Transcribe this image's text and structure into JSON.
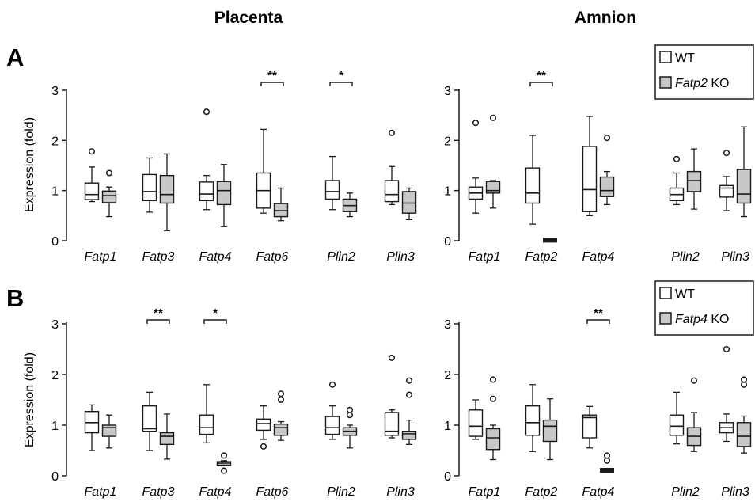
{
  "titles": {
    "left": "Placenta",
    "right": "Amnion"
  },
  "panels": {
    "a": "A",
    "b": "B"
  },
  "ylabel": "Expression (fold)",
  "colors": {
    "wt": "#ffffff",
    "ko": "#c8c8c8",
    "stroke": "#1a1a1a"
  },
  "legends": {
    "a": {
      "wt": "WT",
      "ko_gene": "Fatp2",
      "ko_suffix": " KO"
    },
    "b": {
      "wt": "WT",
      "ko_gene": "Fatp4",
      "ko_suffix": " KO"
    }
  },
  "chart_data": [
    {
      "id": "A-placenta",
      "type": "boxplot",
      "ylim": [
        0,
        3
      ],
      "yticks": [
        0,
        1,
        2,
        3
      ],
      "groups": [
        {
          "label": "Fatp1",
          "wt": {
            "min": 0.78,
            "q1": 0.82,
            "median": 0.92,
            "q3": 1.15,
            "max": 1.47,
            "outliers": [
              1.78
            ]
          },
          "ko": {
            "min": 0.48,
            "q1": 0.76,
            "median": 0.9,
            "q3": 0.99,
            "max": 1.07,
            "outliers": [
              1.35
            ]
          }
        },
        {
          "label": "Fatp3",
          "wt": {
            "min": 0.57,
            "q1": 0.8,
            "median": 0.98,
            "q3": 1.32,
            "max": 1.65,
            "outliers": []
          },
          "ko": {
            "min": 0.2,
            "q1": 0.75,
            "median": 0.92,
            "q3": 1.3,
            "max": 1.73,
            "outliers": []
          }
        },
        {
          "label": "Fatp4",
          "wt": {
            "min": 0.62,
            "q1": 0.8,
            "median": 0.93,
            "q3": 1.17,
            "max": 1.3,
            "outliers": [
              2.57
            ]
          },
          "ko": {
            "min": 0.28,
            "q1": 0.72,
            "median": 1.0,
            "q3": 1.18,
            "max": 1.52,
            "outliers": []
          }
        },
        {
          "label": "Fatp6",
          "wt": {
            "min": 0.55,
            "q1": 0.65,
            "median": 1.0,
            "q3": 1.35,
            "max": 2.22,
            "outliers": []
          },
          "ko": {
            "min": 0.4,
            "q1": 0.48,
            "median": 0.6,
            "q3": 0.74,
            "max": 1.05,
            "outliers": []
          },
          "sig": "**"
        },
        {
          "label": "Plin2",
          "wt": {
            "min": 0.62,
            "q1": 0.83,
            "median": 0.98,
            "q3": 1.2,
            "max": 1.68,
            "outliers": []
          },
          "ko": {
            "min": 0.48,
            "q1": 0.58,
            "median": 0.7,
            "q3": 0.83,
            "max": 0.95,
            "outliers": []
          },
          "sig": "*"
        },
        {
          "label": "Plin3",
          "wt": {
            "min": 0.72,
            "q1": 0.78,
            "median": 0.92,
            "q3": 1.2,
            "max": 1.48,
            "outliers": [
              2.15
            ]
          },
          "ko": {
            "min": 0.42,
            "q1": 0.55,
            "median": 0.75,
            "q3": 0.98,
            "max": 1.05,
            "outliers": []
          }
        }
      ]
    },
    {
      "id": "A-amnion",
      "type": "boxplot",
      "ylim": [
        0,
        3
      ],
      "yticks": [
        0,
        1,
        2,
        3
      ],
      "groups": [
        {
          "label": "Fatp1",
          "wt": {
            "min": 0.55,
            "q1": 0.83,
            "median": 0.95,
            "q3": 1.07,
            "max": 1.25,
            "outliers": [
              2.35
            ]
          },
          "ko": {
            "min": 0.65,
            "q1": 0.95,
            "median": 1.0,
            "q3": 1.18,
            "max": 1.2,
            "outliers": [
              2.45
            ]
          }
        },
        {
          "label": "Fatp2",
          "wt": {
            "min": 0.33,
            "q1": 0.75,
            "median": 0.95,
            "q3": 1.45,
            "max": 2.1,
            "outliers": []
          },
          "ko": {
            "min": 0.0,
            "q1": 0.0,
            "median": 0.01,
            "q3": 0.02,
            "max": 0.03,
            "outliers": []
          },
          "sig": "**"
        },
        {
          "label": "Fatp4",
          "wt": {
            "min": 0.5,
            "q1": 0.58,
            "median": 1.02,
            "q3": 1.88,
            "max": 2.48,
            "outliers": []
          },
          "ko": {
            "min": 0.72,
            "q1": 0.88,
            "median": 1.0,
            "q3": 1.27,
            "max": 1.38,
            "outliers": [
              2.05
            ]
          }
        },
        {
          "label": "Plin2",
          "wt": {
            "min": 0.72,
            "q1": 0.8,
            "median": 0.92,
            "q3": 1.05,
            "max": 1.35,
            "outliers": [
              1.63
            ]
          },
          "ko": {
            "min": 0.63,
            "q1": 0.98,
            "median": 1.2,
            "q3": 1.38,
            "max": 1.83,
            "outliers": []
          }
        },
        {
          "label": "Plin3",
          "wt": {
            "min": 0.6,
            "q1": 0.87,
            "median": 1.05,
            "q3": 1.1,
            "max": 1.28,
            "outliers": [
              1.75
            ]
          },
          "ko": {
            "min": 0.48,
            "q1": 0.75,
            "median": 0.93,
            "q3": 1.42,
            "max": 2.27,
            "outliers": []
          }
        }
      ]
    },
    {
      "id": "B-placenta",
      "type": "boxplot",
      "ylim": [
        0,
        3
      ],
      "yticks": [
        0,
        1,
        2,
        3
      ],
      "groups": [
        {
          "label": "Fatp1",
          "wt": {
            "min": 0.5,
            "q1": 0.85,
            "median": 1.05,
            "q3": 1.27,
            "max": 1.4,
            "outliers": []
          },
          "ko": {
            "min": 0.55,
            "q1": 0.78,
            "median": 0.95,
            "q3": 1.0,
            "max": 1.2,
            "outliers": []
          }
        },
        {
          "label": "Fatp3",
          "wt": {
            "min": 0.5,
            "q1": 0.88,
            "median": 0.93,
            "q3": 1.38,
            "max": 1.65,
            "outliers": []
          },
          "ko": {
            "min": 0.33,
            "q1": 0.62,
            "median": 0.78,
            "q3": 0.85,
            "max": 1.22,
            "outliers": []
          },
          "sig": "**"
        },
        {
          "label": "Fatp4",
          "wt": {
            "min": 0.65,
            "q1": 0.82,
            "median": 0.95,
            "q3": 1.2,
            "max": 1.8,
            "outliers": []
          },
          "ko": {
            "min": 0.2,
            "q1": 0.21,
            "median": 0.25,
            "q3": 0.28,
            "max": 0.3,
            "outliers": [
              0.4,
              0.1
            ]
          },
          "sig": "*"
        },
        {
          "label": "Fatp6",
          "wt": {
            "min": 0.72,
            "q1": 0.9,
            "median": 1.03,
            "q3": 1.12,
            "max": 1.38,
            "outliers": [
              0.58
            ]
          },
          "ko": {
            "min": 0.7,
            "q1": 0.8,
            "median": 0.95,
            "q3": 1.02,
            "max": 1.07,
            "outliers": [
              1.5,
              1.62
            ]
          }
        },
        {
          "label": "Plin2",
          "wt": {
            "min": 0.72,
            "q1": 0.82,
            "median": 0.95,
            "q3": 1.17,
            "max": 1.38,
            "outliers": [
              1.8
            ]
          },
          "ko": {
            "min": 0.55,
            "q1": 0.8,
            "median": 0.88,
            "q3": 0.95,
            "max": 1.0,
            "outliers": [
              1.2,
              1.3
            ]
          }
        },
        {
          "label": "Plin3",
          "wt": {
            "min": 0.75,
            "q1": 0.8,
            "median": 0.88,
            "q3": 1.25,
            "max": 1.3,
            "outliers": [
              2.33
            ]
          },
          "ko": {
            "min": 0.62,
            "q1": 0.72,
            "median": 0.83,
            "q3": 0.88,
            "max": 1.1,
            "outliers": [
              1.6,
              1.88
            ]
          }
        }
      ]
    },
    {
      "id": "B-amnion",
      "type": "boxplot",
      "ylim": [
        0,
        3
      ],
      "yticks": [
        0,
        1,
        2,
        3
      ],
      "groups": [
        {
          "label": "Fatp1",
          "wt": {
            "min": 0.72,
            "q1": 0.78,
            "median": 0.98,
            "q3": 1.3,
            "max": 1.5,
            "outliers": []
          },
          "ko": {
            "min": 0.32,
            "q1": 0.52,
            "median": 0.75,
            "q3": 0.93,
            "max": 1.0,
            "outliers": [
              1.9,
              1.52
            ]
          }
        },
        {
          "label": "Fatp2",
          "wt": {
            "min": 0.48,
            "q1": 0.8,
            "median": 1.05,
            "q3": 1.38,
            "max": 1.8,
            "outliers": []
          },
          "ko": {
            "min": 0.32,
            "q1": 0.68,
            "median": 0.98,
            "q3": 1.1,
            "max": 1.52,
            "outliers": []
          }
        },
        {
          "label": "Fatp4",
          "wt": {
            "min": 0.55,
            "q1": 0.75,
            "median": 1.15,
            "q3": 1.2,
            "max": 1.37,
            "outliers": []
          },
          "ko": {
            "min": 0.1,
            "q1": 0.1,
            "median": 0.11,
            "q3": 0.12,
            "max": 0.13,
            "outliers": [
              0.3,
              0.4
            ]
          },
          "sig": "**"
        },
        {
          "label": "Plin2",
          "wt": {
            "min": 0.63,
            "q1": 0.8,
            "median": 0.98,
            "q3": 1.2,
            "max": 1.65,
            "outliers": []
          },
          "ko": {
            "min": 0.48,
            "q1": 0.6,
            "median": 0.78,
            "q3": 0.95,
            "max": 1.25,
            "outliers": [
              1.88
            ]
          }
        },
        {
          "label": "Plin3",
          "wt": {
            "min": 0.68,
            "q1": 0.85,
            "median": 0.95,
            "q3": 1.05,
            "max": 1.22,
            "outliers": [
              2.5
            ]
          },
          "ko": {
            "min": 0.45,
            "q1": 0.58,
            "median": 0.78,
            "q3": 1.05,
            "max": 1.18,
            "outliers": [
              1.8,
              1.9
            ]
          }
        }
      ]
    }
  ]
}
